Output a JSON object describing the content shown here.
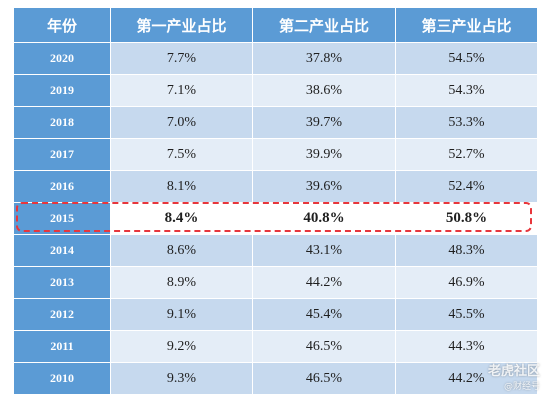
{
  "table": {
    "headers": [
      "年份",
      "第一产业占比",
      "第二产业占比",
      "第三产业占比"
    ],
    "rows": [
      {
        "year": "2020",
        "v1": "7.7%",
        "v2": "37.8%",
        "v3": "54.5%"
      },
      {
        "year": "2019",
        "v1": "7.1%",
        "v2": "38.6%",
        "v3": "54.3%"
      },
      {
        "year": "2018",
        "v1": "7.0%",
        "v2": "39.7%",
        "v3": "53.3%"
      },
      {
        "year": "2017",
        "v1": "7.5%",
        "v2": "39.9%",
        "v3": "52.7%"
      },
      {
        "year": "2016",
        "v1": "8.1%",
        "v2": "39.6%",
        "v3": "52.4%"
      },
      {
        "year": "2015",
        "v1": "8.4%",
        "v2": "40.8%",
        "v3": "50.8%"
      },
      {
        "year": "2014",
        "v1": "8.6%",
        "v2": "43.1%",
        "v3": "48.3%"
      },
      {
        "year": "2013",
        "v1": "8.9%",
        "v2": "44.2%",
        "v3": "46.9%"
      },
      {
        "year": "2012",
        "v1": "9.1%",
        "v2": "45.4%",
        "v3": "45.5%"
      },
      {
        "year": "2011",
        "v1": "9.2%",
        "v2": "46.5%",
        "v3": "44.3%"
      },
      {
        "year": "2010",
        "v1": "9.3%",
        "v2": "46.5%",
        "v3": "44.2%"
      }
    ],
    "highlighted_year": "2015"
  },
  "colors": {
    "header_bg": "#5b9bd5",
    "row_dark": "#c6d9ee",
    "row_light": "#e4edf7",
    "highlight_border": "#e8363c"
  },
  "watermark": {
    "main": "老虎社区",
    "sub": "@财经号"
  }
}
